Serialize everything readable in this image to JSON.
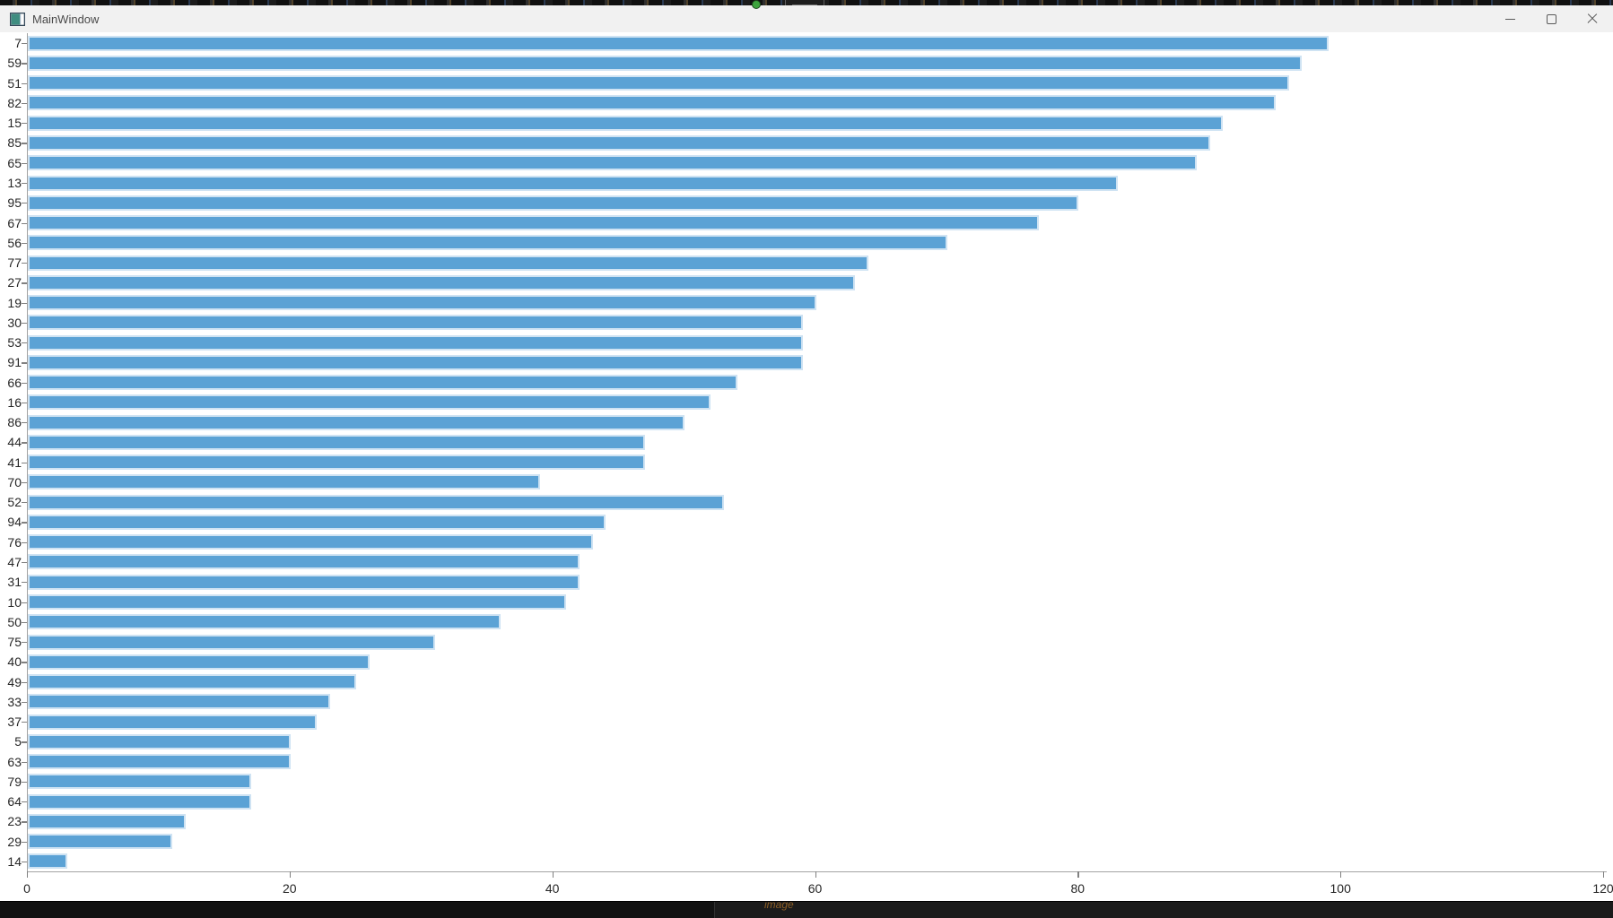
{
  "window": {
    "title": "MainWindow",
    "icon": "app-window-icon",
    "controls": [
      {
        "id": "minimize",
        "icon": "minimize-icon"
      },
      {
        "id": "maximize",
        "icon": "maximize-icon"
      },
      {
        "id": "close",
        "icon": "close-icon"
      }
    ]
  },
  "screen": {
    "handle_icon": "grip-lines-icon"
  },
  "taskbar": {
    "icon": "green-dot-icon",
    "app_label": "image"
  },
  "chart_data": {
    "type": "bar",
    "orientation": "horizontal",
    "title": "",
    "xlabel": "",
    "ylabel": "",
    "grid": false,
    "legend": null,
    "xlim": [
      0,
      120
    ],
    "x_ticks": [
      0,
      20,
      40,
      60,
      80,
      100,
      120
    ],
    "categories": [
      "7",
      "59",
      "51",
      "82",
      "15",
      "85",
      "65",
      "13",
      "95",
      "67",
      "56",
      "77",
      "27",
      "19",
      "30",
      "53",
      "91",
      "66",
      "16",
      "86",
      "44",
      "41",
      "70",
      "52",
      "94",
      "76",
      "47",
      "31",
      "10",
      "50",
      "75",
      "40",
      "49",
      "33",
      "37",
      "5",
      "63",
      "79",
      "64",
      "23",
      "29",
      "14"
    ],
    "values": [
      99,
      97,
      96,
      95,
      91,
      90,
      89,
      83,
      80,
      77,
      70,
      64,
      63,
      60,
      59,
      59,
      59,
      54,
      52,
      50,
      47,
      47,
      39,
      53,
      44,
      43,
      42,
      42,
      41,
      36,
      31,
      26,
      25,
      23,
      22,
      20,
      20,
      17,
      17,
      12,
      11,
      3
    ],
    "bar_color": "#5ba2d5",
    "bar_edge_color": "#cfe3f3",
    "axis_color": "#a3a3a3",
    "tick_color": "#808080",
    "label_color": "#262626",
    "background_color": "#ffffff",
    "titlebar_color": "#f1f1f1"
  }
}
